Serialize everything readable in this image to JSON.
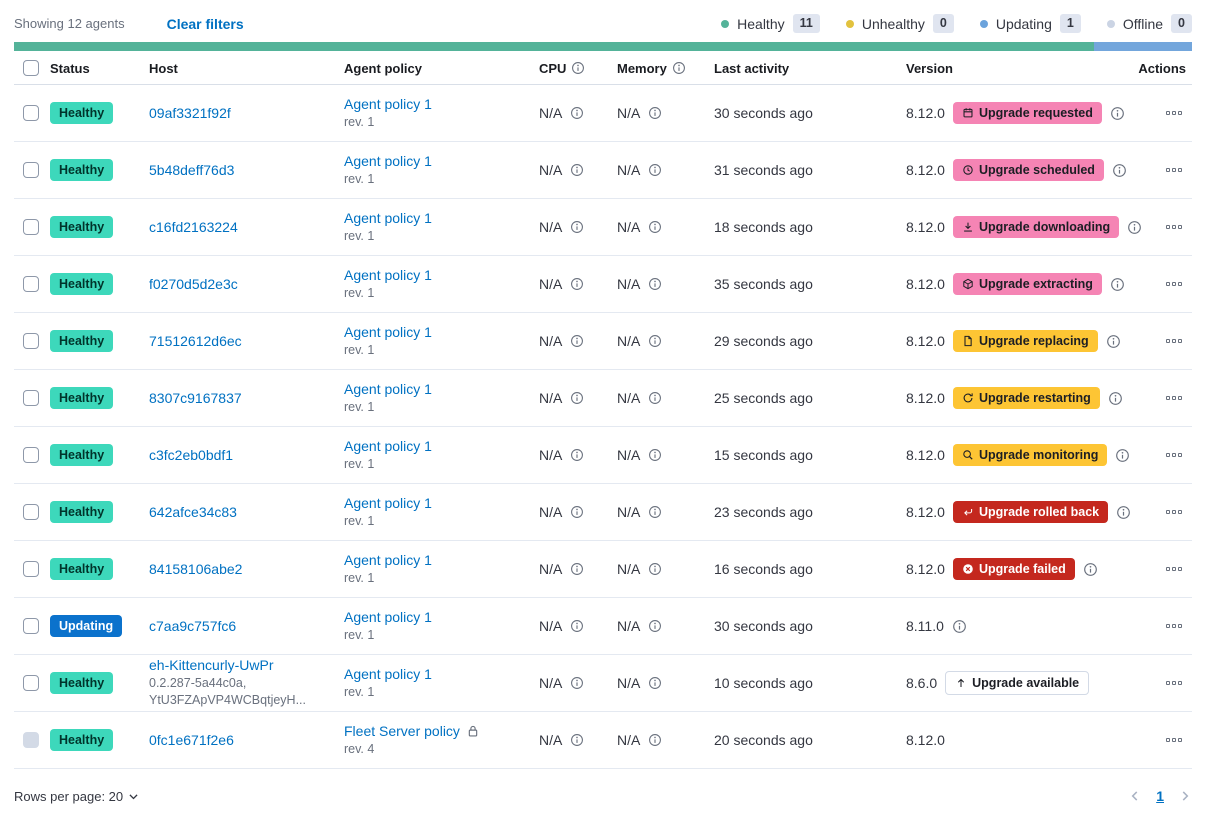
{
  "header": {
    "showing": "Showing 12 agents",
    "clear_filters": "Clear filters",
    "legend": [
      {
        "label": "Healthy",
        "count": "11",
        "color": "#54B399"
      },
      {
        "label": "Unhealthy",
        "count": "0",
        "color": "#E2C23E"
      },
      {
        "label": "Updating",
        "count": "1",
        "color": "#6BA3DC"
      },
      {
        "label": "Offline",
        "count": "0",
        "color": "#CBD4E4"
      }
    ],
    "progress": {
      "healthy_pct": 91.67,
      "healthy_color": "#54B399",
      "updating_pct": 8.33,
      "updating_color": "#73A6DC"
    }
  },
  "table": {
    "columns": {
      "status": "Status",
      "host": "Host",
      "policy": "Agent policy",
      "cpu": "CPU",
      "memory": "Memory",
      "last_activity": "Last activity",
      "version": "Version",
      "actions": "Actions"
    }
  },
  "agents": [
    {
      "status": "Healthy",
      "status_type": "healthy",
      "host": "09af3321f92f",
      "host_sub": null,
      "policy": "Agent policy 1",
      "policy_rev": "rev. 1",
      "policy_locked": false,
      "cpu": "N/A",
      "memory": "N/A",
      "last_activity": "30 seconds ago",
      "version": "8.12.0",
      "upgrade_badge": {
        "label": "Upgrade requested",
        "icon": "calendar",
        "style": "pink"
      },
      "version_info_icon": true,
      "checkbox_disabled": false
    },
    {
      "status": "Healthy",
      "status_type": "healthy",
      "host": "5b48deff76d3",
      "host_sub": null,
      "policy": "Agent policy 1",
      "policy_rev": "rev. 1",
      "policy_locked": false,
      "cpu": "N/A",
      "memory": "N/A",
      "last_activity": "31 seconds ago",
      "version": "8.12.0",
      "upgrade_badge": {
        "label": "Upgrade scheduled",
        "icon": "clock",
        "style": "pink"
      },
      "version_info_icon": true,
      "checkbox_disabled": false
    },
    {
      "status": "Healthy",
      "status_type": "healthy",
      "host": "c16fd2163224",
      "host_sub": null,
      "policy": "Agent policy 1",
      "policy_rev": "rev. 1",
      "policy_locked": false,
      "cpu": "N/A",
      "memory": "N/A",
      "last_activity": "18 seconds ago",
      "version": "8.12.0",
      "upgrade_badge": {
        "label": "Upgrade downloading",
        "icon": "download",
        "style": "pink"
      },
      "version_info_icon": true,
      "checkbox_disabled": false
    },
    {
      "status": "Healthy",
      "status_type": "healthy",
      "host": "f0270d5d2e3c",
      "host_sub": null,
      "policy": "Agent policy 1",
      "policy_rev": "rev. 1",
      "policy_locked": false,
      "cpu": "N/A",
      "memory": "N/A",
      "last_activity": "35 seconds ago",
      "version": "8.12.0",
      "upgrade_badge": {
        "label": "Upgrade extracting",
        "icon": "package",
        "style": "pink"
      },
      "version_info_icon": true,
      "checkbox_disabled": false
    },
    {
      "status": "Healthy",
      "status_type": "healthy",
      "host": "71512612d6ec",
      "host_sub": null,
      "policy": "Agent policy 1",
      "policy_rev": "rev. 1",
      "policy_locked": false,
      "cpu": "N/A",
      "memory": "N/A",
      "last_activity": "29 seconds ago",
      "version": "8.12.0",
      "upgrade_badge": {
        "label": "Upgrade replacing",
        "icon": "document",
        "style": "yellow"
      },
      "version_info_icon": true,
      "checkbox_disabled": false
    },
    {
      "status": "Healthy",
      "status_type": "healthy",
      "host": "8307c9167837",
      "host_sub": null,
      "policy": "Agent policy 1",
      "policy_rev": "rev. 1",
      "policy_locked": false,
      "cpu": "N/A",
      "memory": "N/A",
      "last_activity": "25 seconds ago",
      "version": "8.12.0",
      "upgrade_badge": {
        "label": "Upgrade restarting",
        "icon": "refresh",
        "style": "yellow"
      },
      "version_info_icon": true,
      "checkbox_disabled": false
    },
    {
      "status": "Healthy",
      "status_type": "healthy",
      "host": "c3fc2eb0bdf1",
      "host_sub": null,
      "policy": "Agent policy 1",
      "policy_rev": "rev. 1",
      "policy_locked": false,
      "cpu": "N/A",
      "memory": "N/A",
      "last_activity": "15 seconds ago",
      "version": "8.12.0",
      "upgrade_badge": {
        "label": "Upgrade monitoring",
        "icon": "inspect",
        "style": "yellow"
      },
      "version_info_icon": true,
      "checkbox_disabled": false
    },
    {
      "status": "Healthy",
      "status_type": "healthy",
      "host": "642afce34c83",
      "host_sub": null,
      "policy": "Agent policy 1",
      "policy_rev": "rev. 1",
      "policy_locked": false,
      "cpu": "N/A",
      "memory": "N/A",
      "last_activity": "23 seconds ago",
      "version": "8.12.0",
      "upgrade_badge": {
        "label": "Upgrade rolled back",
        "icon": "return",
        "style": "red"
      },
      "version_info_icon": true,
      "checkbox_disabled": false
    },
    {
      "status": "Healthy",
      "status_type": "healthy",
      "host": "84158106abe2",
      "host_sub": null,
      "policy": "Agent policy 1",
      "policy_rev": "rev. 1",
      "policy_locked": false,
      "cpu": "N/A",
      "memory": "N/A",
      "last_activity": "16 seconds ago",
      "version": "8.12.0",
      "upgrade_badge": {
        "label": "Upgrade failed",
        "icon": "cross-circle",
        "style": "red"
      },
      "version_info_icon": true,
      "checkbox_disabled": false
    },
    {
      "status": "Updating",
      "status_type": "updating",
      "host": "c7aa9c757fc6",
      "host_sub": null,
      "policy": "Agent policy 1",
      "policy_rev": "rev. 1",
      "policy_locked": false,
      "cpu": "N/A",
      "memory": "N/A",
      "last_activity": "30 seconds ago",
      "version": "8.11.0",
      "upgrade_badge": null,
      "version_info_icon": true,
      "checkbox_disabled": false
    },
    {
      "status": "Healthy",
      "status_type": "healthy",
      "host": "eh-Kittencurly-UwPr",
      "host_sub": [
        "0.2.287-5a44c0a,",
        "YtU3FZApVP4WCBqtjeyH..."
      ],
      "policy": "Agent policy 1",
      "policy_rev": "rev. 1",
      "policy_locked": false,
      "cpu": "N/A",
      "memory": "N/A",
      "last_activity": "10 seconds ago",
      "version": "8.6.0",
      "upgrade_badge": {
        "label": "Upgrade available",
        "icon": "arrow-up",
        "style": "white"
      },
      "version_info_icon": false,
      "checkbox_disabled": false
    },
    {
      "status": "Healthy",
      "status_type": "healthy",
      "host": "0fc1e671f2e6",
      "host_sub": null,
      "policy": "Fleet Server policy",
      "policy_rev": "rev. 4",
      "policy_locked": true,
      "cpu": "N/A",
      "memory": "N/A",
      "last_activity": "20 seconds ago",
      "version": "8.12.0",
      "upgrade_badge": null,
      "version_info_icon": false,
      "checkbox_disabled": true
    }
  ],
  "footer": {
    "rows_per_page": "Rows per page: 20",
    "page": "1"
  }
}
